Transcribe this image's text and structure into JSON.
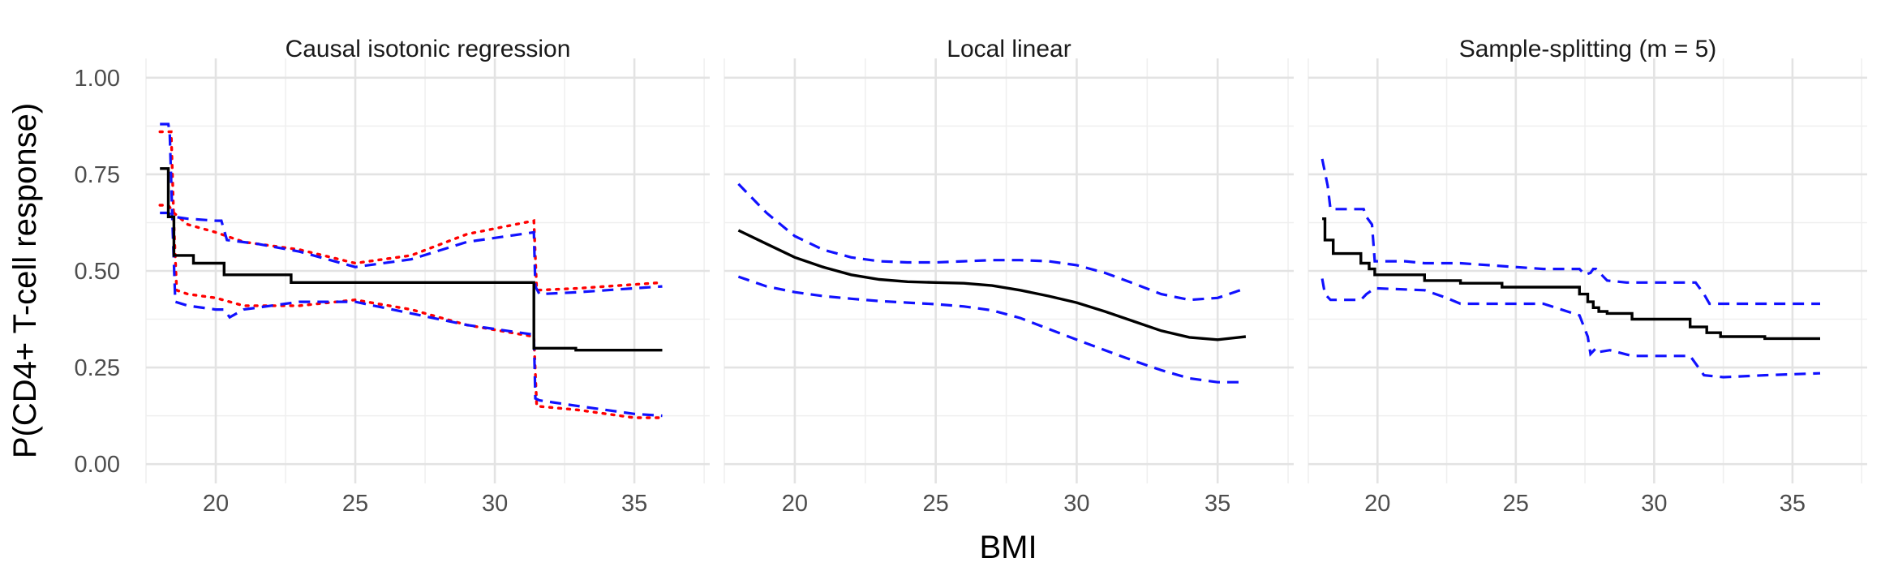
{
  "figure": {
    "xlabel": "BMI",
    "ylabel": "P(CD4+ T-cell response)"
  },
  "colors": {
    "estimate": "#000000",
    "ci_dashed": "#1111ff",
    "ci_dotted": "#ff0000",
    "grid_major": "#e3e3e3",
    "grid_minor": "#efefef"
  },
  "chart_data": [
    {
      "type": "line",
      "title": "Causal isotonic regression",
      "xlabel": "BMI",
      "ylabel": "P(CD4+ T-cell response)",
      "xlim": [
        17.5,
        37.7
      ],
      "ylim": [
        -0.05,
        1.05
      ],
      "x_ticks": [
        20,
        25,
        30,
        35
      ],
      "y_ticks": [
        0.0,
        0.25,
        0.5,
        0.75,
        1.0
      ],
      "y_tick_labels": [
        "0.00",
        "0.25",
        "0.50",
        "0.75",
        "1.00"
      ],
      "grid": true,
      "series": [
        {
          "role": "estimate",
          "step": true,
          "x": [
            18.0,
            18.3,
            18.3,
            18.5,
            18.5,
            19.2,
            19.2,
            20.3,
            20.3,
            22.7,
            22.7,
            31.4,
            31.4,
            32.9,
            32.9,
            36.0
          ],
          "y": [
            0.765,
            0.765,
            0.64,
            0.64,
            0.54,
            0.54,
            0.52,
            0.52,
            0.49,
            0.49,
            0.47,
            0.47,
            0.3,
            0.3,
            0.295,
            0.295
          ]
        },
        {
          "role": "ci-dashed-upper",
          "x": [
            18.0,
            18.3,
            18.35,
            18.45,
            18.55,
            19.0,
            20.0,
            20.3,
            20.5,
            21.0,
            23.0,
            25.0,
            27.0,
            29.0,
            31.4,
            31.45,
            31.6,
            33.0,
            35.0,
            36.0
          ],
          "y": [
            0.88,
            0.88,
            0.86,
            0.62,
            0.42,
            0.41,
            0.4,
            0.4,
            0.38,
            0.4,
            0.42,
            0.42,
            0.39,
            0.36,
            0.335,
            0.17,
            0.165,
            0.15,
            0.13,
            0.125
          ]
        },
        {
          "role": "ci-dashed-lower",
          "x": [
            18.0,
            18.3,
            18.5,
            19.0,
            20.0,
            20.2,
            20.4,
            21.5,
            23.0,
            25.0,
            27.0,
            29.0,
            31.4,
            31.45,
            31.6,
            33.0,
            35.0,
            36.0
          ],
          "y": [
            0.65,
            0.65,
            0.64,
            0.635,
            0.63,
            0.63,
            0.58,
            0.57,
            0.55,
            0.51,
            0.53,
            0.575,
            0.6,
            0.46,
            0.44,
            0.445,
            0.455,
            0.46
          ]
        },
        {
          "role": "ci-dotted-upper",
          "x": [
            18.0,
            18.3,
            18.4,
            18.5,
            18.6,
            19.0,
            20.0,
            21.0,
            23.0,
            25.0,
            27.0,
            29.0,
            31.4,
            31.5,
            33.0,
            35.0,
            36.0
          ],
          "y": [
            0.86,
            0.86,
            0.86,
            0.62,
            0.45,
            0.44,
            0.43,
            0.41,
            0.41,
            0.425,
            0.4,
            0.36,
            0.33,
            0.15,
            0.14,
            0.12,
            0.12
          ]
        },
        {
          "role": "ci-dotted-lower",
          "x": [
            18.0,
            18.3,
            18.5,
            19.0,
            20.0,
            21.0,
            23.0,
            25.0,
            27.0,
            29.0,
            31.4,
            31.5,
            33.0,
            35.0,
            36.0
          ],
          "y": [
            0.67,
            0.67,
            0.65,
            0.62,
            0.6,
            0.575,
            0.555,
            0.52,
            0.54,
            0.595,
            0.63,
            0.45,
            0.455,
            0.465,
            0.47
          ]
        }
      ]
    },
    {
      "type": "line",
      "title": "Local linear",
      "xlabel": "BMI",
      "ylabel": "P(CD4+ T-cell response)",
      "xlim": [
        17.5,
        37.7
      ],
      "ylim": [
        -0.05,
        1.05
      ],
      "x_ticks": [
        20,
        25,
        30,
        35
      ],
      "y_ticks": [
        0.0,
        0.25,
        0.5,
        0.75,
        1.0
      ],
      "grid": true,
      "series": [
        {
          "role": "estimate",
          "step": false,
          "x": [
            18.0,
            19.0,
            20.0,
            21.0,
            22.0,
            23.0,
            24.0,
            25.0,
            26.0,
            27.0,
            28.0,
            29.0,
            30.0,
            31.0,
            32.0,
            33.0,
            34.0,
            35.0,
            36.0
          ],
          "y": [
            0.605,
            0.57,
            0.535,
            0.51,
            0.49,
            0.478,
            0.472,
            0.47,
            0.468,
            0.462,
            0.45,
            0.435,
            0.418,
            0.395,
            0.37,
            0.345,
            0.328,
            0.322,
            0.33
          ]
        },
        {
          "role": "ci-dashed-upper",
          "x": [
            18.0,
            19.0,
            20.0,
            21.0,
            22.0,
            23.0,
            24.0,
            25.0,
            26.0,
            27.0,
            28.0,
            29.0,
            30.0,
            31.0,
            32.0,
            33.0,
            34.0,
            35.0,
            36.0
          ],
          "y": [
            0.725,
            0.65,
            0.59,
            0.555,
            0.535,
            0.525,
            0.522,
            0.522,
            0.525,
            0.528,
            0.528,
            0.525,
            0.515,
            0.495,
            0.468,
            0.44,
            0.425,
            0.43,
            0.455
          ]
        },
        {
          "role": "ci-dashed-lower",
          "x": [
            18.0,
            19.0,
            20.0,
            21.0,
            22.0,
            23.0,
            24.0,
            25.0,
            26.0,
            27.0,
            28.0,
            29.0,
            30.0,
            31.0,
            32.0,
            33.0,
            34.0,
            35.0,
            36.0
          ],
          "y": [
            0.485,
            0.46,
            0.445,
            0.435,
            0.428,
            0.422,
            0.418,
            0.414,
            0.408,
            0.398,
            0.378,
            0.35,
            0.322,
            0.295,
            0.268,
            0.243,
            0.222,
            0.212,
            0.212
          ]
        }
      ]
    },
    {
      "type": "line",
      "title": "Sample-splitting (m = 5)",
      "xlabel": "BMI",
      "ylabel": "P(CD4+ T-cell response)",
      "xlim": [
        17.5,
        37.7
      ],
      "ylim": [
        -0.05,
        1.05
      ],
      "x_ticks": [
        20,
        25,
        30,
        35
      ],
      "y_ticks": [
        0.0,
        0.25,
        0.5,
        0.75,
        1.0
      ],
      "grid": true,
      "series": [
        {
          "role": "estimate",
          "step": true,
          "x": [
            18.0,
            18.1,
            18.1,
            18.4,
            18.4,
            19.4,
            19.4,
            19.7,
            19.7,
            19.9,
            19.9,
            21.7,
            21.7,
            23.0,
            23.0,
            24.5,
            24.5,
            27.3,
            27.3,
            27.6,
            27.6,
            27.8,
            27.8,
            28.0,
            28.0,
            28.3,
            28.3,
            29.2,
            29.2,
            31.3,
            31.3,
            31.9,
            31.9,
            32.4,
            32.4,
            34.0,
            34.0,
            36.0
          ],
          "y": [
            0.635,
            0.635,
            0.58,
            0.58,
            0.545,
            0.545,
            0.52,
            0.52,
            0.505,
            0.505,
            0.49,
            0.49,
            0.475,
            0.475,
            0.468,
            0.468,
            0.458,
            0.458,
            0.44,
            0.44,
            0.42,
            0.42,
            0.405,
            0.405,
            0.395,
            0.395,
            0.39,
            0.39,
            0.375,
            0.375,
            0.355,
            0.355,
            0.34,
            0.34,
            0.33,
            0.33,
            0.325,
            0.325
          ]
        },
        {
          "role": "ci-dashed-upper",
          "x": [
            18.0,
            18.2,
            18.3,
            19.5,
            19.6,
            19.8,
            19.9,
            21.0,
            21.7,
            23.0,
            26.0,
            27.2,
            27.3,
            27.5,
            27.7,
            27.8,
            27.9,
            28.1,
            28.3,
            29.0,
            30.0,
            31.5,
            31.8,
            32.0,
            33.0,
            36.0
          ],
          "y": [
            0.79,
            0.72,
            0.66,
            0.66,
            0.64,
            0.62,
            0.525,
            0.525,
            0.52,
            0.52,
            0.505,
            0.505,
            0.505,
            0.49,
            0.495,
            0.505,
            0.505,
            0.49,
            0.475,
            0.47,
            0.47,
            0.47,
            0.44,
            0.415,
            0.415,
            0.415
          ]
        },
        {
          "role": "ci-dashed-lower",
          "x": [
            18.0,
            18.1,
            18.3,
            19.4,
            19.6,
            19.9,
            21.7,
            22.5,
            23.0,
            24.5,
            26.0,
            27.3,
            27.6,
            27.7,
            27.9,
            28.0,
            28.4,
            29.2,
            31.3,
            31.8,
            32.5,
            34.0,
            36.0
          ],
          "y": [
            0.48,
            0.44,
            0.425,
            0.425,
            0.44,
            0.455,
            0.45,
            0.43,
            0.415,
            0.415,
            0.415,
            0.385,
            0.33,
            0.285,
            0.3,
            0.29,
            0.295,
            0.28,
            0.28,
            0.23,
            0.225,
            0.23,
            0.235
          ]
        }
      ]
    }
  ]
}
